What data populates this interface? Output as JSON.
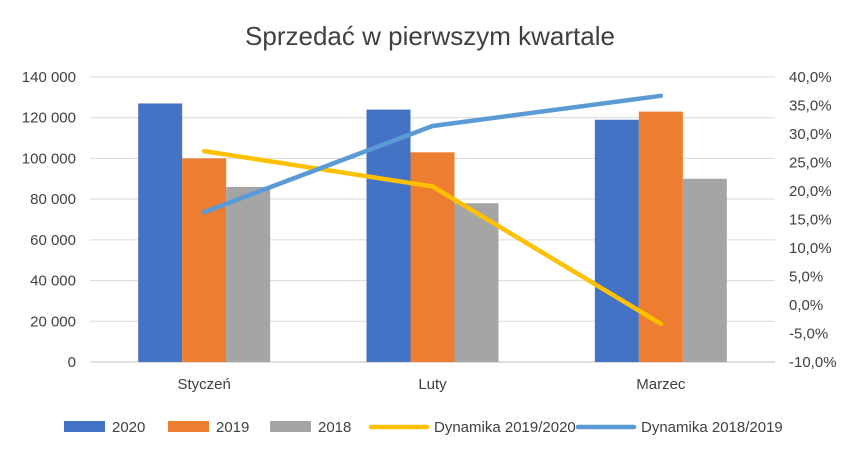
{
  "chart_data": {
    "type": "bar",
    "title": "Sprzedać w pierwszym kwartale",
    "categories": [
      "Styczeń",
      "Luty",
      "Marzec"
    ],
    "series": [
      {
        "name": "2020",
        "kind": "bar",
        "axis": "left",
        "color": "#4472C4",
        "values": [
          127000,
          124000,
          119000
        ]
      },
      {
        "name": "2019",
        "kind": "bar",
        "axis": "left",
        "color": "#ED7D31",
        "values": [
          100000,
          103000,
          123000
        ]
      },
      {
        "name": "2018",
        "kind": "bar",
        "axis": "left",
        "color": "#A5A5A5",
        "values": [
          86000,
          78000,
          90000
        ]
      },
      {
        "name": "Dynamika 2019/2020",
        "kind": "line",
        "axis": "right",
        "color": "#FFC000",
        "values": [
          27.0,
          20.8,
          -3.3
        ]
      },
      {
        "name": "Dynamika 2018/2019",
        "kind": "line",
        "axis": "right",
        "color": "#5B9BD5",
        "values": [
          16.3,
          31.4,
          36.7
        ]
      }
    ],
    "ylim": [
      0,
      140000
    ],
    "y_ticks": [
      "0",
      "20 000",
      "40 000",
      "60 000",
      "80 000",
      "100 000",
      "120 000",
      "140 000"
    ],
    "y2lim": [
      -10,
      40
    ],
    "y2_ticks": [
      "-10,0%",
      "-5,0%",
      "0,0%",
      "5,0%",
      "10,0%",
      "15,0%",
      "20,0%",
      "25,0%",
      "30,0%",
      "35,0%",
      "40,0%"
    ],
    "grid": true,
    "legend": "bottom"
  }
}
